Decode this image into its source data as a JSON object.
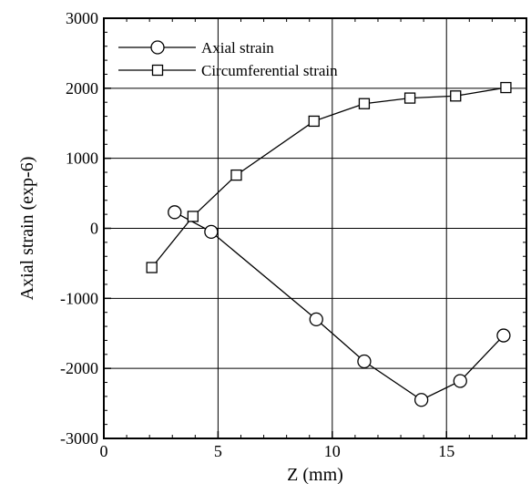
{
  "chart_data": {
    "type": "line",
    "title": "",
    "xlabel": "Z (mm)",
    "ylabel": "Axial strain (exp-6)",
    "xlim": [
      0,
      18.5
    ],
    "ylim": [
      -3000,
      3000
    ],
    "x_ticks": [
      0,
      5,
      10,
      15
    ],
    "y_ticks": [
      -3000,
      -2000,
      -1000,
      0,
      1000,
      2000,
      3000
    ],
    "x_tick_labels": [
      "0",
      "5",
      "10",
      "15"
    ],
    "y_tick_labels": [
      "-3000",
      "-2000",
      "-1000",
      "0",
      "1000",
      "2000",
      "3000"
    ],
    "grid": true,
    "legend_position": "top-left",
    "series": [
      {
        "name": "Axial strain",
        "marker": "circle",
        "x": [
          3.1,
          4.7,
          9.3,
          11.4,
          13.9,
          15.6,
          17.5
        ],
        "y": [
          230,
          -50,
          -1300,
          -1900,
          -2450,
          -2180,
          -1530
        ]
      },
      {
        "name": "Circumferential strain",
        "marker": "square",
        "x": [
          2.1,
          3.9,
          5.8,
          9.2,
          11.4,
          13.4,
          15.4,
          17.6
        ],
        "y": [
          -560,
          170,
          760,
          1530,
          1780,
          1860,
          1890,
          2010
        ]
      }
    ]
  }
}
